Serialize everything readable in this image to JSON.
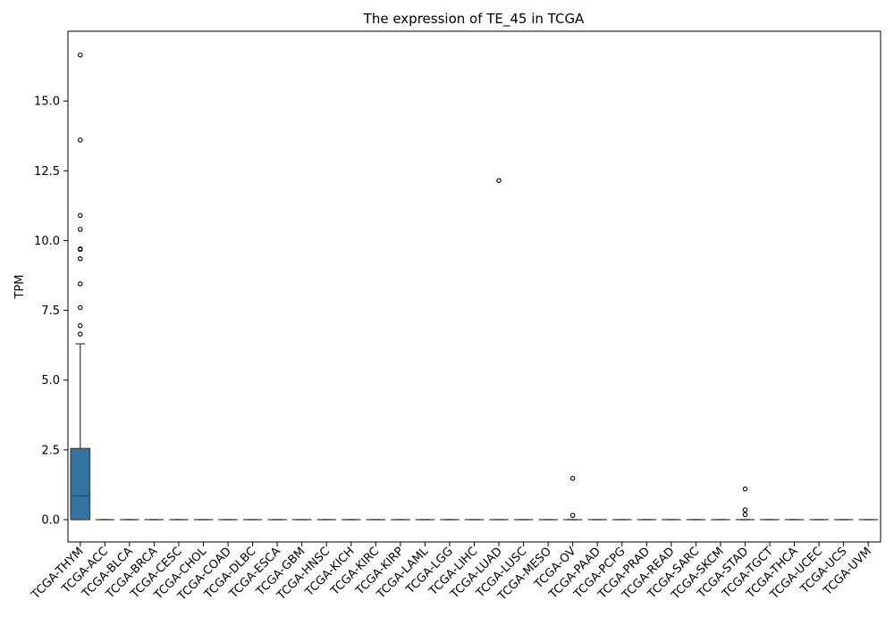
{
  "chart_data": {
    "type": "box",
    "title": "The expression of TE_45 in TCGA",
    "xlabel": "",
    "ylabel": "TPM",
    "ylim": [
      -0.8,
      17.5
    ],
    "yticks": [
      0.0,
      2.5,
      5.0,
      7.5,
      10.0,
      12.5,
      15.0
    ],
    "ytick_labels": [
      "0.0",
      "2.5",
      "5.0",
      "7.5",
      "10.0",
      "12.5",
      "15.0"
    ],
    "grid": false,
    "box_color": "#3274a1",
    "categories": [
      "TCGA-THYM",
      "TCGA-ACC",
      "TCGA-BLCA",
      "TCGA-BRCA",
      "TCGA-CESC",
      "TCGA-CHOL",
      "TCGA-COAD",
      "TCGA-DLBC",
      "TCGA-ESCA",
      "TCGA-GBM",
      "TCGA-HNSC",
      "TCGA-KICH",
      "TCGA-KIRC",
      "TCGA-KIRP",
      "TCGA-LAML",
      "TCGA-LGG",
      "TCGA-LIHC",
      "TCGA-LUAD",
      "TCGA-LUSC",
      "TCGA-MESO",
      "TCGA-OV",
      "TCGA-PAAD",
      "TCGA-PCPG",
      "TCGA-PRAD",
      "TCGA-READ",
      "TCGA-SARC",
      "TCGA-SKCM",
      "TCGA-STAD",
      "TCGA-TGCT",
      "TCGA-THCA",
      "TCGA-UCEC",
      "TCGA-UCS",
      "TCGA-UVM"
    ],
    "boxes": [
      {
        "q1": 0.0,
        "median": 0.85,
        "q3": 2.55,
        "whisker_low": 0.0,
        "whisker_high": 6.3,
        "outliers": [
          16.65,
          13.6,
          10.9,
          10.4,
          9.7,
          9.68,
          9.35,
          8.45,
          7.6,
          6.95,
          6.65
        ]
      },
      {
        "q1": 0,
        "median": 0,
        "q3": 0,
        "whisker_low": 0,
        "whisker_high": 0,
        "outliers": []
      },
      {
        "q1": 0,
        "median": 0,
        "q3": 0,
        "whisker_low": 0,
        "whisker_high": 0,
        "outliers": []
      },
      {
        "q1": 0,
        "median": 0,
        "q3": 0,
        "whisker_low": 0,
        "whisker_high": 0,
        "outliers": []
      },
      {
        "q1": 0,
        "median": 0,
        "q3": 0,
        "whisker_low": 0,
        "whisker_high": 0,
        "outliers": []
      },
      {
        "q1": 0,
        "median": 0,
        "q3": 0,
        "whisker_low": 0,
        "whisker_high": 0,
        "outliers": []
      },
      {
        "q1": 0,
        "median": 0,
        "q3": 0,
        "whisker_low": 0,
        "whisker_high": 0,
        "outliers": []
      },
      {
        "q1": 0,
        "median": 0,
        "q3": 0,
        "whisker_low": 0,
        "whisker_high": 0,
        "outliers": []
      },
      {
        "q1": 0,
        "median": 0,
        "q3": 0,
        "whisker_low": 0,
        "whisker_high": 0,
        "outliers": []
      },
      {
        "q1": 0,
        "median": 0,
        "q3": 0,
        "whisker_low": 0,
        "whisker_high": 0,
        "outliers": []
      },
      {
        "q1": 0,
        "median": 0,
        "q3": 0,
        "whisker_low": 0,
        "whisker_high": 0,
        "outliers": []
      },
      {
        "q1": 0,
        "median": 0,
        "q3": 0,
        "whisker_low": 0,
        "whisker_high": 0,
        "outliers": []
      },
      {
        "q1": 0,
        "median": 0,
        "q3": 0,
        "whisker_low": 0,
        "whisker_high": 0,
        "outliers": []
      },
      {
        "q1": 0,
        "median": 0,
        "q3": 0,
        "whisker_low": 0,
        "whisker_high": 0,
        "outliers": []
      },
      {
        "q1": 0,
        "median": 0,
        "q3": 0,
        "whisker_low": 0,
        "whisker_high": 0,
        "outliers": []
      },
      {
        "q1": 0,
        "median": 0,
        "q3": 0,
        "whisker_low": 0,
        "whisker_high": 0,
        "outliers": []
      },
      {
        "q1": 0,
        "median": 0,
        "q3": 0,
        "whisker_low": 0,
        "whisker_high": 0,
        "outliers": []
      },
      {
        "q1": 0,
        "median": 0,
        "q3": 0,
        "whisker_low": 0,
        "whisker_high": 0,
        "outliers": [
          12.15
        ]
      },
      {
        "q1": 0,
        "median": 0,
        "q3": 0,
        "whisker_low": 0,
        "whisker_high": 0,
        "outliers": []
      },
      {
        "q1": 0,
        "median": 0,
        "q3": 0,
        "whisker_low": 0,
        "whisker_high": 0,
        "outliers": []
      },
      {
        "q1": 0,
        "median": 0,
        "q3": 0,
        "whisker_low": 0,
        "whisker_high": 0,
        "outliers": [
          1.48,
          0.15
        ]
      },
      {
        "q1": 0,
        "median": 0,
        "q3": 0,
        "whisker_low": 0,
        "whisker_high": 0,
        "outliers": []
      },
      {
        "q1": 0,
        "median": 0,
        "q3": 0,
        "whisker_low": 0,
        "whisker_high": 0,
        "outliers": []
      },
      {
        "q1": 0,
        "median": 0,
        "q3": 0,
        "whisker_low": 0,
        "whisker_high": 0,
        "outliers": []
      },
      {
        "q1": 0,
        "median": 0,
        "q3": 0,
        "whisker_low": 0,
        "whisker_high": 0,
        "outliers": []
      },
      {
        "q1": 0,
        "median": 0,
        "q3": 0,
        "whisker_low": 0,
        "whisker_high": 0,
        "outliers": []
      },
      {
        "q1": 0,
        "median": 0,
        "q3": 0,
        "whisker_low": 0,
        "whisker_high": 0,
        "outliers": []
      },
      {
        "q1": 0,
        "median": 0,
        "q3": 0,
        "whisker_low": 0,
        "whisker_high": 0,
        "outliers": [
          1.1,
          0.35,
          0.18
        ]
      },
      {
        "q1": 0,
        "median": 0,
        "q3": 0,
        "whisker_low": 0,
        "whisker_high": 0,
        "outliers": []
      },
      {
        "q1": 0,
        "median": 0,
        "q3": 0,
        "whisker_low": 0,
        "whisker_high": 0,
        "outliers": []
      },
      {
        "q1": 0,
        "median": 0,
        "q3": 0,
        "whisker_low": 0,
        "whisker_high": 0,
        "outliers": []
      },
      {
        "q1": 0,
        "median": 0,
        "q3": 0,
        "whisker_low": 0,
        "whisker_high": 0,
        "outliers": []
      },
      {
        "q1": 0,
        "median": 0,
        "q3": 0,
        "whisker_low": 0,
        "whisker_high": 0,
        "outliers": []
      }
    ]
  }
}
